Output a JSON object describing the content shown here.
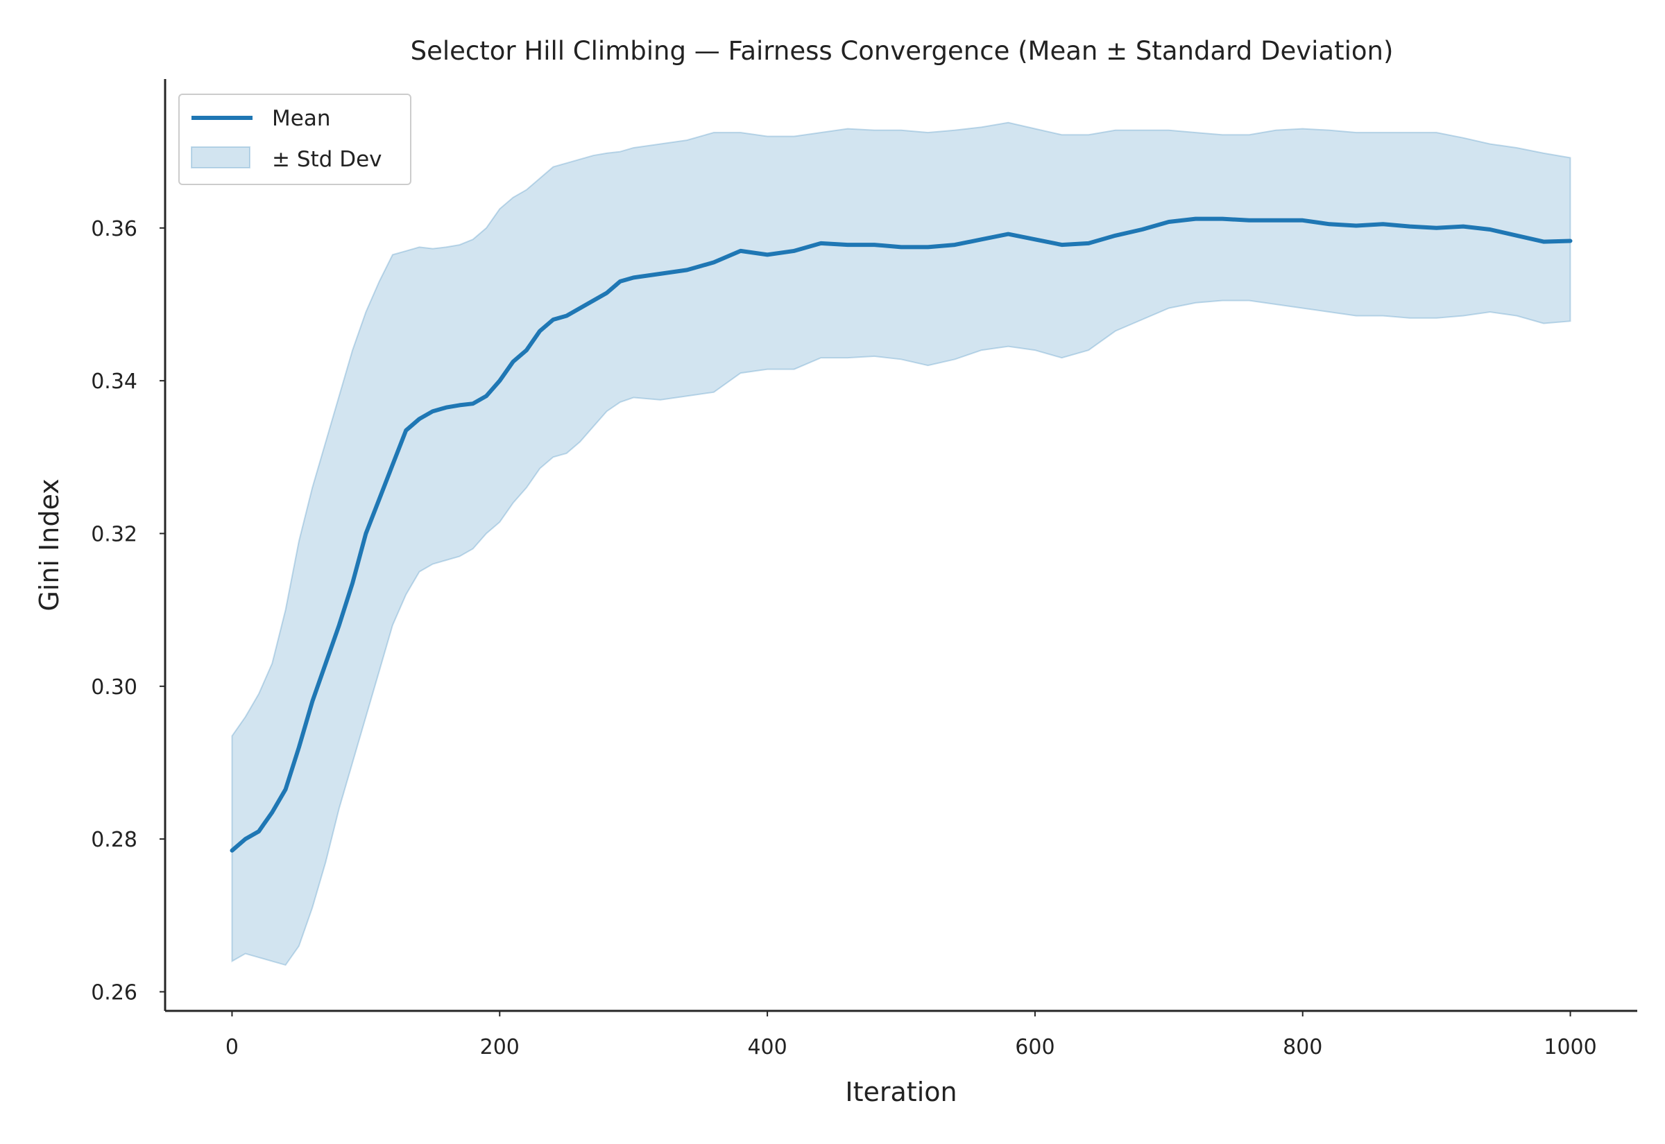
{
  "chart_data": {
    "type": "line",
    "title": "Selector Hill Climbing — Fairness Convergence (Mean ± Standard Deviation)",
    "xlabel": "Iteration",
    "ylabel": "Gini Index",
    "xlim": [
      -50,
      1050
    ],
    "ylim": [
      0.2575,
      0.3795
    ],
    "xticks": [
      0,
      200,
      400,
      600,
      800,
      1000
    ],
    "yticks": [
      0.26,
      0.28,
      0.3,
      0.32,
      0.34,
      0.36
    ],
    "xtick_labels": [
      "0",
      "200",
      "400",
      "600",
      "800",
      "1000"
    ],
    "ytick_labels": [
      "0.26",
      "0.28",
      "0.30",
      "0.32",
      "0.34",
      "0.36"
    ],
    "grid": false,
    "legend_position": "top-left",
    "legend": [
      "Mean",
      "± Std Dev"
    ],
    "colors": {
      "mean": "#1f77b4",
      "band": "#1f77b4"
    },
    "series": [
      {
        "name": "Mean",
        "x": [
          0,
          10,
          20,
          30,
          40,
          50,
          60,
          70,
          80,
          90,
          100,
          110,
          120,
          130,
          140,
          150,
          160,
          170,
          180,
          190,
          200,
          210,
          220,
          230,
          240,
          250,
          260,
          270,
          280,
          290,
          300,
          320,
          340,
          360,
          380,
          400,
          420,
          440,
          460,
          480,
          500,
          520,
          540,
          560,
          580,
          600,
          620,
          640,
          660,
          680,
          700,
          720,
          740,
          760,
          780,
          800,
          820,
          840,
          860,
          880,
          900,
          920,
          940,
          960,
          980,
          1000
        ],
        "values": [
          0.2785,
          0.28,
          0.281,
          0.2835,
          0.2865,
          0.292,
          0.298,
          0.303,
          0.308,
          0.3135,
          0.32,
          0.3245,
          0.329,
          0.3335,
          0.335,
          0.336,
          0.3365,
          0.3368,
          0.337,
          0.338,
          0.34,
          0.3425,
          0.344,
          0.3465,
          0.348,
          0.3485,
          0.3495,
          0.3505,
          0.3515,
          0.353,
          0.3535,
          0.354,
          0.3545,
          0.3555,
          0.357,
          0.3565,
          0.357,
          0.358,
          0.3578,
          0.3578,
          0.3575,
          0.3575,
          0.3578,
          0.3585,
          0.3592,
          0.3585,
          0.3578,
          0.358,
          0.359,
          0.3598,
          0.3608,
          0.3612,
          0.3612,
          0.361,
          0.361,
          0.361,
          0.3605,
          0.3603,
          0.3605,
          0.3602,
          0.36,
          0.3602,
          0.3598,
          0.359,
          0.3582,
          0.3583
        ]
      },
      {
        "name": "± Std Dev",
        "x": [
          0,
          10,
          20,
          30,
          40,
          50,
          60,
          70,
          80,
          90,
          100,
          110,
          120,
          130,
          140,
          150,
          160,
          170,
          180,
          190,
          200,
          210,
          220,
          230,
          240,
          250,
          260,
          270,
          280,
          290,
          300,
          320,
          340,
          360,
          380,
          400,
          420,
          440,
          460,
          480,
          500,
          520,
          540,
          560,
          580,
          600,
          620,
          640,
          660,
          680,
          700,
          720,
          740,
          760,
          780,
          800,
          820,
          840,
          860,
          880,
          900,
          920,
          940,
          960,
          980,
          1000
        ],
        "lower": [
          0.264,
          0.265,
          0.2645,
          0.264,
          0.2635,
          0.266,
          0.271,
          0.277,
          0.284,
          0.29,
          0.296,
          0.302,
          0.308,
          0.312,
          0.315,
          0.316,
          0.3165,
          0.317,
          0.318,
          0.32,
          0.3215,
          0.324,
          0.326,
          0.3285,
          0.33,
          0.3305,
          0.332,
          0.334,
          0.336,
          0.3372,
          0.3378,
          0.3375,
          0.338,
          0.3385,
          0.341,
          0.3415,
          0.3415,
          0.343,
          0.343,
          0.3432,
          0.3428,
          0.342,
          0.3428,
          0.344,
          0.3445,
          0.344,
          0.343,
          0.344,
          0.3465,
          0.348,
          0.3495,
          0.3502,
          0.3505,
          0.3505,
          0.35,
          0.3495,
          0.349,
          0.3485,
          0.3485,
          0.3482,
          0.3482,
          0.3485,
          0.349,
          0.3485,
          0.3475,
          0.3478
        ],
        "upper": [
          0.2935,
          0.296,
          0.299,
          0.303,
          0.31,
          0.319,
          0.326,
          0.332,
          0.338,
          0.344,
          0.349,
          0.353,
          0.3565,
          0.357,
          0.3575,
          0.3573,
          0.3575,
          0.3578,
          0.3585,
          0.36,
          0.3625,
          0.364,
          0.365,
          0.3665,
          0.368,
          0.3685,
          0.369,
          0.3695,
          0.3698,
          0.37,
          0.3705,
          0.371,
          0.3715,
          0.3725,
          0.3725,
          0.372,
          0.372,
          0.3725,
          0.373,
          0.3728,
          0.3728,
          0.3725,
          0.3728,
          0.3732,
          0.3738,
          0.373,
          0.3722,
          0.3722,
          0.3728,
          0.3728,
          0.3728,
          0.3725,
          0.3722,
          0.3722,
          0.3728,
          0.373,
          0.3728,
          0.3725,
          0.3725,
          0.3725,
          0.3725,
          0.3718,
          0.371,
          0.3705,
          0.3698,
          0.3692
        ]
      }
    ]
  }
}
